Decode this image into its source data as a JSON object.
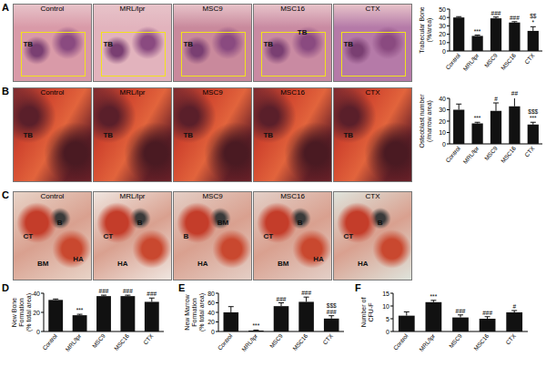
{
  "chart_data": [
    {
      "type": "bar",
      "y_label": [
        "Trabecular Bone",
        "(%/area)"
      ],
      "categories": [
        "Control",
        "MRL/lpr",
        "MSC9",
        "MSC16",
        "CTX"
      ],
      "values": [
        40,
        18,
        39,
        34,
        24
      ],
      "errors": [
        1,
        1,
        1.5,
        1,
        5
      ],
      "color": "#111111",
      "ylim": [
        0,
        50
      ],
      "yticks": [
        0,
        10,
        20,
        30,
        40,
        50
      ],
      "annotations": [
        null,
        [
          "***"
        ],
        [
          "###"
        ],
        [
          "###"
        ],
        [
          "*",
          "$$"
        ]
      ]
    },
    {
      "type": "bar",
      "y_label": [
        "Osteoblast number",
        "(/marrow area)"
      ],
      "categories": [
        "Control",
        "MRL/lpr",
        "MSC9",
        "MSC16",
        "CTX"
      ],
      "values": [
        30,
        18,
        29,
        33,
        17
      ],
      "errors": [
        5,
        1,
        7,
        8,
        2
      ],
      "color": "#111111",
      "ylim": [
        0,
        40
      ],
      "yticks": [
        0,
        10,
        20,
        30,
        40
      ],
      "annotations": [
        null,
        [
          "***"
        ],
        [
          "#"
        ],
        [
          "##"
        ],
        [
          "***",
          "$$$"
        ]
      ]
    },
    {
      "type": "bar",
      "panel": "D",
      "y_label": [
        "New Bone",
        "Formation",
        "(% total area)"
      ],
      "categories": [
        "Control",
        "MRL/lpr",
        "MSC9",
        "MSC16",
        "CTX"
      ],
      "values": [
        33,
        17,
        37,
        37,
        31
      ],
      "errors": [
        1,
        1,
        1,
        1,
        4
      ],
      "color": "#111111",
      "ylim": [
        0,
        40
      ],
      "yticks": [
        0,
        20,
        40
      ],
      "annotations": [
        null,
        [
          "***"
        ],
        [
          "###"
        ],
        [
          "###"
        ],
        [
          "###"
        ]
      ]
    },
    {
      "type": "bar",
      "panel": "E",
      "y_label": [
        "New Marrow",
        "Formation",
        "(% total area)"
      ],
      "categories": [
        "Control",
        "MRL/lpr",
        "MSC9",
        "MSC16",
        "CTX"
      ],
      "values": [
        40,
        2,
        53,
        62,
        27
      ],
      "errors": [
        12,
        1,
        7,
        10,
        6
      ],
      "color": "#111111",
      "ylim": [
        0,
        80
      ],
      "yticks": [
        0,
        20,
        40,
        60,
        80
      ],
      "annotations": [
        null,
        [
          "***"
        ],
        [
          "###"
        ],
        [
          "###"
        ],
        [
          "###",
          "$$$"
        ]
      ]
    },
    {
      "type": "bar",
      "panel": "F",
      "y_label": [
        "Number of",
        "CFU-F"
      ],
      "categories": [
        "Control",
        "MRL/lpr",
        "MSC9",
        "MSC16",
        "CTX"
      ],
      "values": [
        6.2,
        11.5,
        5.5,
        5,
        7.5
      ],
      "errors": [
        1.5,
        0.7,
        1,
        0.8,
        0.7
      ],
      "color": "#111111",
      "ylim": [
        0,
        15
      ],
      "yticks": [
        0,
        5,
        10,
        15
      ],
      "annotations": [
        null,
        [
          "***"
        ],
        [
          "###"
        ],
        [
          "###"
        ],
        [
          "#"
        ]
      ]
    }
  ],
  "image_panels": [
    {
      "panel": "A",
      "images": [
        {
          "label": "Control",
          "tags": [
            "TB"
          ]
        },
        {
          "label": "MRL/lpr",
          "tags": [
            "TB"
          ]
        },
        {
          "label": "MSC9",
          "tags": [
            "TB"
          ]
        },
        {
          "label": "MSC16",
          "tags": [
            "TB",
            "TB"
          ]
        },
        {
          "label": "CTX",
          "tags": [
            "TB"
          ]
        }
      ]
    },
    {
      "panel": "B",
      "images": [
        {
          "label": "Control",
          "tags": [
            "TB"
          ]
        },
        {
          "label": "MRL/lpr",
          "tags": [
            "TB"
          ]
        },
        {
          "label": "MSC9",
          "tags": [
            "TB"
          ]
        },
        {
          "label": "MSC16",
          "tags": [
            "TB"
          ]
        },
        {
          "label": "CTX",
          "tags": [
            "TB"
          ]
        }
      ]
    },
    {
      "panel": "C",
      "images": [
        {
          "label": "Control",
          "tags": [
            "CT",
            "B",
            "BM",
            "HA"
          ]
        },
        {
          "label": "MRL/lpr",
          "tags": [
            "CT",
            "B",
            "HA"
          ]
        },
        {
          "label": "MSC9",
          "tags": [
            "B",
            "BM",
            "HA"
          ]
        },
        {
          "label": "MSC16",
          "tags": [
            "CT",
            "B",
            "BM",
            "HA"
          ]
        },
        {
          "label": "CTX",
          "tags": [
            "CT",
            "B",
            "HA"
          ]
        }
      ]
    }
  ]
}
